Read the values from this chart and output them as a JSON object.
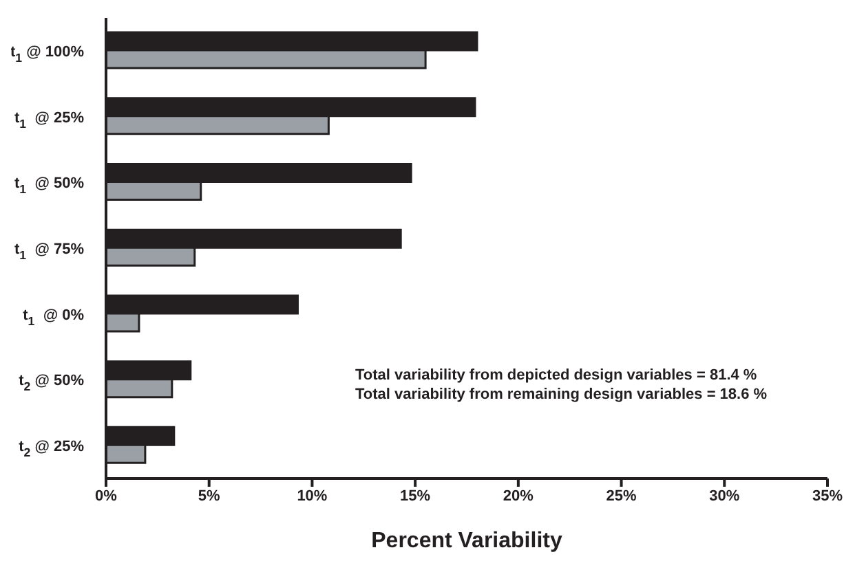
{
  "chart_data": {
    "type": "bar",
    "orientation": "horizontal",
    "categories": [
      "t$_{1}$ @ 100%",
      "t$_{1}$  @ 25%",
      "t$_{1}$  @ 50%",
      "t$_{1}$  @ 75%",
      "t$_{1}$  @ 0%",
      "t$_{2}$ @ 50%",
      "t$_{2}$ @ 25%"
    ],
    "series": [
      {
        "color": "#231f20",
        "values": [
          18.0,
          17.9,
          14.8,
          14.3,
          9.3,
          4.1,
          3.3
        ]
      },
      {
        "color": "#9aa0a6",
        "values": [
          15.5,
          10.8,
          4.6,
          4.3,
          1.6,
          3.2,
          1.9
        ]
      }
    ],
    "xlabel": "Percent Variability",
    "xlim": [
      0,
      35
    ],
    "xticks": [
      {
        "value": 0,
        "label": "0%"
      },
      {
        "value": 5,
        "label": "5%"
      },
      {
        "value": 10,
        "label": "10%"
      },
      {
        "value": 15,
        "label": "15%"
      },
      {
        "value": 20,
        "label": "20%"
      },
      {
        "value": 25,
        "label": "25%"
      },
      {
        "value": 30,
        "label": "30%"
      },
      {
        "value": 35,
        "label": "35%"
      }
    ],
    "annotations": [
      "Total variability from depicted design variables = 81.4 %",
      "Total variability from remaining design variables = 18.6 %"
    ],
    "grid": false,
    "legend": false
  }
}
